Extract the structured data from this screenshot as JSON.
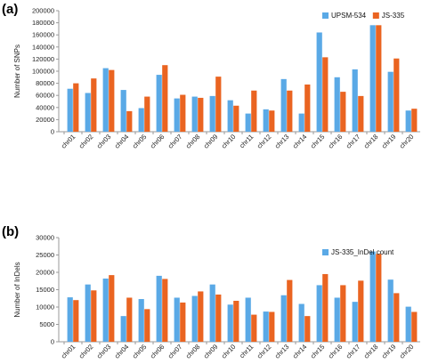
{
  "colors": {
    "series_a": "#5aa9e6",
    "series_b": "#ea6421",
    "axis": "#9a9a9a"
  },
  "chart_data": [
    {
      "panel_label": "(a)",
      "type": "bar",
      "categories": [
        "chr01",
        "chr02",
        "chr03",
        "chr04",
        "chr05",
        "chr06",
        "chr07",
        "chr08",
        "chr09",
        "chr10",
        "chr11",
        "chr12",
        "chr13",
        "chr14",
        "chr15",
        "chr16",
        "chr17",
        "chr18",
        "chr19",
        "chr20"
      ],
      "series": [
        {
          "name": "UPSM-534",
          "color": "#5aa9e6",
          "values": [
            71000,
            64000,
            105000,
            69000,
            39000,
            94000,
            55000,
            58000,
            59000,
            52000,
            30000,
            37000,
            87000,
            30000,
            164000,
            90000,
            103000,
            176000,
            99000,
            35000
          ]
        },
        {
          "name": "JS-335",
          "color": "#ea6421",
          "values": [
            80000,
            88000,
            102000,
            34000,
            58000,
            110000,
            61000,
            56000,
            91000,
            43000,
            68000,
            35000,
            68000,
            78000,
            123000,
            66000,
            59000,
            176000,
            121000,
            38000
          ]
        }
      ],
      "ylabel": "Number of SNPs",
      "xlabel": "",
      "ylim": [
        0,
        200000
      ],
      "yticks": [
        "0",
        "20000",
        "40000",
        "60000",
        "80000",
        "100000",
        "120000",
        "140000",
        "160000",
        "180000",
        "200000"
      ],
      "legend": "top-right",
      "grid": false
    },
    {
      "panel_label": "(b)",
      "type": "bar",
      "categories": [
        "chr01",
        "chr02",
        "chr03",
        "chr04",
        "chr05",
        "chr06",
        "chr07",
        "chr08",
        "chr09",
        "chr10",
        "chr11",
        "chr12",
        "chr13",
        "chr14",
        "chr15",
        "chr16",
        "chr17",
        "chr18",
        "chr19",
        "chr20"
      ],
      "series": [
        {
          "name": "JS-335_InDel count",
          "color": "#5aa9e6",
          "values": [
            12800,
            16500,
            18200,
            7400,
            12300,
            19000,
            12700,
            13200,
            16500,
            10700,
            12700,
            8700,
            13400,
            10900,
            16300,
            12700,
            11500,
            26000,
            17900,
            10100
          ]
        },
        {
          "name": "",
          "color": "#ea6421",
          "values": [
            12000,
            14800,
            19200,
            12700,
            9400,
            18100,
            11300,
            14500,
            13600,
            11800,
            7800,
            8600,
            17800,
            7400,
            19500,
            16300,
            17600,
            25300,
            14000,
            8600
          ]
        }
      ],
      "ylabel": "Number of InDels",
      "xlabel": "",
      "ylim": [
        0,
        30000
      ],
      "yticks": [
        "0",
        "5000",
        "10000",
        "15000",
        "20000",
        "25000",
        "30000"
      ],
      "legend": "top-right",
      "grid": false
    }
  ]
}
